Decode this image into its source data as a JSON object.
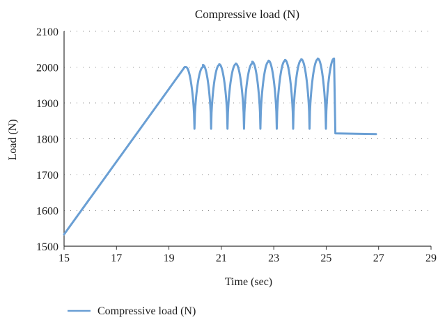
{
  "chart_data": {
    "type": "line",
    "title": "Compressive load (N)",
    "xlabel": "Time (sec)",
    "ylabel": "Load (N)",
    "xlim": [
      15,
      29
    ],
    "ylim": [
      1500,
      2100
    ],
    "xticks": [
      15,
      17,
      19,
      21,
      23,
      25,
      27,
      29
    ],
    "yticks": [
      1500,
      1600,
      1700,
      1800,
      1900,
      2000,
      2100
    ],
    "grid": "dotted-horizontal",
    "legend_position": "bottom-left",
    "series": [
      {
        "name": "Compressive load (N)",
        "color": "#6a9fd4",
        "ramp": {
          "x": [
            15.0,
            19.6
          ],
          "y": [
            1533,
            2000
          ]
        },
        "cycles": [
          {
            "x_start": 19.65,
            "x_end": 20.3,
            "peak": 2000
          },
          {
            "x_start": 20.3,
            "x_end": 20.92,
            "peak": 2006
          },
          {
            "x_start": 20.92,
            "x_end": 21.55,
            "peak": 2008
          },
          {
            "x_start": 21.55,
            "x_end": 22.18,
            "peak": 2010
          },
          {
            "x_start": 22.18,
            "x_end": 22.8,
            "peak": 2015
          },
          {
            "x_start": 22.8,
            "x_end": 23.43,
            "peak": 2018
          },
          {
            "x_start": 23.43,
            "x_end": 24.05,
            "peak": 2020
          },
          {
            "x_start": 24.05,
            "x_end": 24.68,
            "peak": 2022
          },
          {
            "x_start": 24.68,
            "x_end": 25.3,
            "peak": 2024
          }
        ],
        "trough": 1828,
        "tail": {
          "x": [
            25.35,
            26.9
          ],
          "y": [
            1815,
            1813
          ]
        }
      }
    ]
  }
}
